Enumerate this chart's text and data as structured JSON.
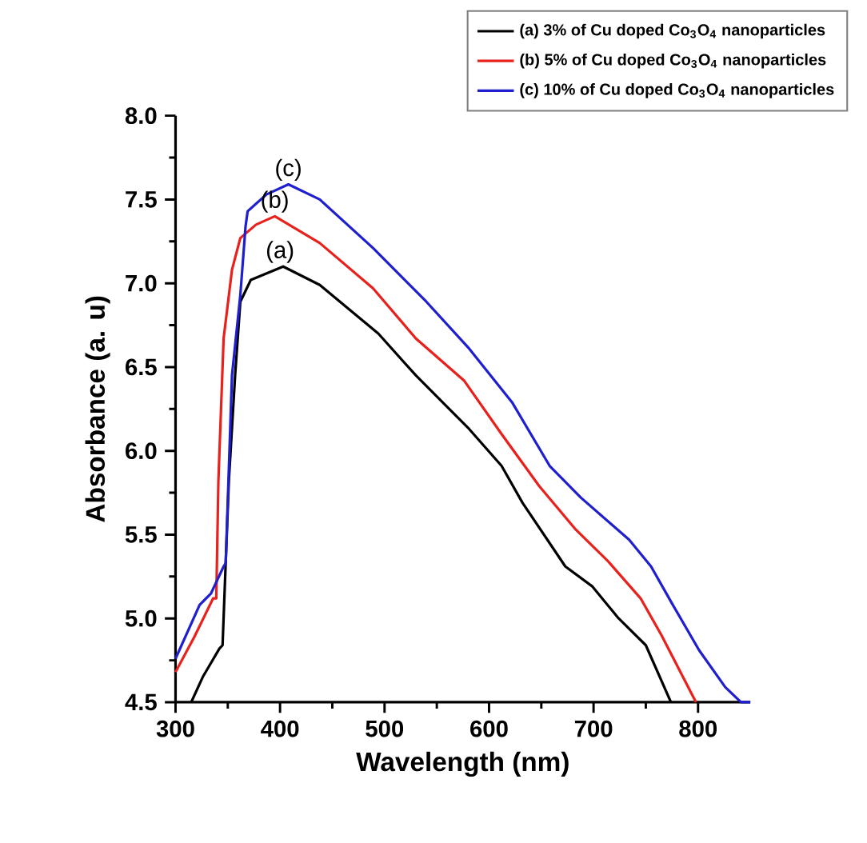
{
  "chart_data": {
    "type": "line",
    "xlabel": "Wavelength (nm)",
    "ylabel": "Absorbance (a. u)",
    "xlim": [
      300,
      850
    ],
    "ylim": [
      4.5,
      8.0
    ],
    "xticks": [
      300,
      400,
      500,
      600,
      700,
      800
    ],
    "yticks": [
      4.5,
      {
        "value": 5,
        "label": "5.0"
      },
      5.5,
      {
        "value": 6,
        "label": "6.0"
      },
      6.5,
      {
        "value": 7,
        "label": "7.0"
      },
      7.5,
      {
        "value": 8,
        "label": "8.0"
      }
    ],
    "grid": false,
    "legend": "top right",
    "marker": "none",
    "line_style": "solid",
    "series": [
      {
        "name": "(a) 3% of Cu doped Co$_{3}$O$_{4}$ nanoparticles",
        "color": "#000000",
        "x": [
          315,
          326,
          342,
          345,
          351,
          357,
          362,
          372,
          403,
          438,
          494,
          530,
          581,
          612,
          632,
          673,
          699,
          724,
          750,
          774
        ],
        "values": [
          4.5,
          4.65,
          4.82,
          4.84,
          5.82,
          6.45,
          6.89,
          7.02,
          7.1,
          6.99,
          6.7,
          6.45,
          6.13,
          5.91,
          5.69,
          5.31,
          5.19,
          5.0,
          4.84,
          4.5
        ]
      },
      {
        "name": "(b) 5% of Cu doped Co$_{3}$O$_{4}$ nanoparticles",
        "color": "#e8211c",
        "x": [
          300,
          318,
          336,
          339,
          341,
          346,
          354,
          362,
          377,
          395,
          438,
          489,
          530,
          576,
          612,
          648,
          683,
          714,
          745,
          765,
          798
        ],
        "values": [
          4.68,
          4.89,
          5.12,
          5.12,
          5.82,
          6.67,
          7.08,
          7.27,
          7.35,
          7.4,
          7.24,
          6.97,
          6.67,
          6.42,
          6.1,
          5.79,
          5.53,
          5.34,
          5.12,
          4.9,
          4.5
        ]
      },
      {
        "name": "(c) 10% of Cu doped Co$_{3}$O$_{4}$ nanoparticles",
        "color": "#1f1fd0",
        "x": [
          300,
          323,
          334,
          346,
          348,
          354,
          362,
          367,
          369,
          387,
          408,
          438,
          489,
          540,
          581,
          622,
          658,
          688,
          734,
          755,
          775,
          801,
          826,
          841,
          850
        ],
        "values": [
          4.76,
          5.08,
          5.15,
          5.31,
          5.33,
          6.45,
          6.93,
          7.34,
          7.43,
          7.53,
          7.59,
          7.5,
          7.21,
          6.89,
          6.61,
          6.29,
          5.91,
          5.72,
          5.47,
          5.31,
          5.09,
          4.81,
          4.59,
          4.5,
          4.5
        ]
      }
    ],
    "annotations": [
      {
        "text": "(a)",
        "x": 400,
        "y": 7.1
      },
      {
        "text": "(b)",
        "x": 395,
        "y": 7.4
      },
      {
        "text": "(c)",
        "x": 408,
        "y": 7.59
      }
    ]
  }
}
